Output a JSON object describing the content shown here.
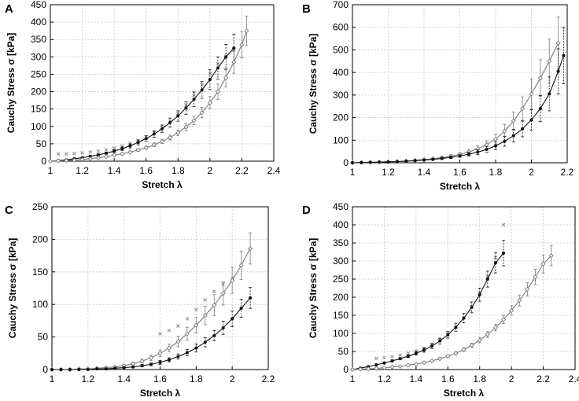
{
  "figure": {
    "panels": [
      "A",
      "B",
      "C",
      "D"
    ]
  },
  "chart_data": [
    {
      "panel": "A",
      "type": "line",
      "title": "",
      "xlabel": "Stretch λ",
      "ylabel": "Cauchy Stress σ [kPa]",
      "xlim": [
        1,
        2.4
      ],
      "ylim": [
        0,
        450
      ],
      "xticks": [
        "1",
        "1.2",
        "1.4",
        "1.6",
        "1.8",
        "2",
        "2.2",
        "2.4"
      ],
      "yticks": [
        "0",
        "50",
        "100",
        "150",
        "200",
        "250",
        "300",
        "350",
        "400",
        "450"
      ],
      "grid": true,
      "series": [
        {
          "name": "light grey series",
          "color": "#8a8a8a",
          "marker": "x",
          "line": false,
          "x": [
            1.05,
            1.1,
            1.15,
            1.2,
            1.25,
            1.3,
            1.35,
            1.4,
            1.45,
            1.5,
            1.55,
            1.6,
            1.65,
            1.7,
            1.75,
            1.8,
            1.85,
            1.9,
            1.95,
            2.0,
            2.05,
            2.1,
            2.15
          ],
          "y": [
            21,
            21,
            22,
            24,
            26,
            29,
            33,
            38,
            44,
            51,
            60,
            70,
            82,
            97,
            115,
            137,
            162,
            190,
            220,
            252,
            280,
            300,
            320
          ]
        },
        {
          "name": "black series",
          "color": "#111111",
          "marker": "dot",
          "line": true,
          "x": [
            1.0,
            1.05,
            1.1,
            1.15,
            1.2,
            1.25,
            1.3,
            1.35,
            1.4,
            1.45,
            1.5,
            1.55,
            1.6,
            1.65,
            1.7,
            1.75,
            1.8,
            1.85,
            1.9,
            1.95,
            2.0,
            2.05,
            2.1,
            2.15
          ],
          "y": [
            0,
            2,
            4,
            7,
            10,
            14,
            18,
            23,
            29,
            36,
            44,
            54,
            65,
            78,
            93,
            111,
            130,
            153,
            178,
            205,
            235,
            268,
            300,
            325
          ],
          "err": [
            0,
            0,
            1,
            1,
            2,
            2,
            3,
            3,
            4,
            5,
            6,
            7,
            8,
            9,
            11,
            13,
            15,
            18,
            21,
            24,
            28,
            32,
            36,
            40
          ]
        },
        {
          "name": "grey series",
          "color": "#7a7a7a",
          "marker": "diamond",
          "line": true,
          "x": [
            1.0,
            1.05,
            1.1,
            1.15,
            1.2,
            1.25,
            1.3,
            1.35,
            1.4,
            1.45,
            1.5,
            1.55,
            1.6,
            1.65,
            1.7,
            1.75,
            1.8,
            1.85,
            1.9,
            1.95,
            2.0,
            2.05,
            2.1,
            2.15,
            2.2,
            2.23
          ],
          "y": [
            0,
            1,
            2,
            3,
            5,
            7,
            10,
            13,
            17,
            21,
            26,
            32,
            39,
            47,
            57,
            68,
            82,
            98,
            117,
            140,
            168,
            200,
            240,
            285,
            335,
            375
          ],
          "err": [
            0,
            0,
            0,
            1,
            1,
            1,
            2,
            2,
            2,
            3,
            3,
            4,
            4,
            5,
            6,
            7,
            8,
            10,
            12,
            15,
            18,
            22,
            27,
            32,
            38,
            42
          ]
        }
      ]
    },
    {
      "panel": "B",
      "type": "line",
      "title": "",
      "xlabel": "Stretch λ",
      "ylabel": "Cauchy Stress σ [kPa]",
      "xlim": [
        1,
        2.2
      ],
      "ylim": [
        0,
        700
      ],
      "xticks": [
        "1",
        "1.2",
        "1.4",
        "1.6",
        "1.8",
        "2",
        "2.2"
      ],
      "yticks": [
        "0",
        "100",
        "200",
        "300",
        "400",
        "500",
        "600",
        "700"
      ],
      "grid": true,
      "series": [
        {
          "name": "grey series",
          "color": "#7a7a7a",
          "marker": "diamond",
          "line": true,
          "x": [
            1.0,
            1.05,
            1.1,
            1.15,
            1.2,
            1.25,
            1.3,
            1.35,
            1.4,
            1.45,
            1.5,
            1.55,
            1.6,
            1.65,
            1.7,
            1.75,
            1.8,
            1.85,
            1.9,
            1.95,
            2.0,
            2.05,
            2.1,
            2.15
          ],
          "y": [
            0,
            1,
            2,
            3,
            4,
            6,
            8,
            11,
            14,
            18,
            23,
            29,
            37,
            48,
            62,
            80,
            105,
            140,
            185,
            240,
            305,
            375,
            450,
            530
          ],
          "err": [
            0,
            0,
            0,
            1,
            1,
            1,
            2,
            2,
            3,
            4,
            5,
            6,
            8,
            10,
            13,
            17,
            22,
            30,
            40,
            52,
            66,
            82,
            98,
            115
          ]
        },
        {
          "name": "black series",
          "color": "#111111",
          "marker": "dot",
          "line": true,
          "x": [
            1.0,
            1.05,
            1.1,
            1.15,
            1.2,
            1.25,
            1.3,
            1.35,
            1.4,
            1.45,
            1.5,
            1.55,
            1.6,
            1.65,
            1.7,
            1.75,
            1.8,
            1.85,
            1.9,
            1.95,
            2.0,
            2.05,
            2.1,
            2.15,
            2.18
          ],
          "y": [
            0,
            1,
            2,
            3,
            4,
            5,
            7,
            9,
            12,
            15,
            19,
            24,
            30,
            38,
            47,
            59,
            75,
            95,
            120,
            150,
            190,
            240,
            305,
            405,
            475
          ],
          "err": [
            0,
            0,
            0,
            1,
            1,
            1,
            1,
            2,
            2,
            3,
            4,
            5,
            6,
            8,
            10,
            13,
            17,
            22,
            28,
            35,
            45,
            58,
            75,
            100,
            125
          ]
        }
      ]
    },
    {
      "panel": "C",
      "type": "line",
      "title": "",
      "xlabel": "Stretch λ",
      "ylabel": "Cauchy Stress σ [kPa]",
      "xlim": [
        1,
        2.2
      ],
      "ylim": [
        0,
        250
      ],
      "xticks": [
        "1",
        "1.2",
        "1.4",
        "1.6",
        "1.8",
        "2",
        "2.2"
      ],
      "yticks": [
        "0",
        "50",
        "100",
        "150",
        "200",
        "250"
      ],
      "grid": true,
      "series": [
        {
          "name": "light grey series",
          "color": "#8a8a8a",
          "marker": "x",
          "line": false,
          "x": [
            1.6,
            1.65,
            1.7,
            1.75,
            1.8,
            1.85,
            1.9,
            1.95,
            2.0
          ],
          "y": [
            55,
            60,
            67,
            78,
            92,
            107,
            120,
            131,
            140
          ]
        },
        {
          "name": "grey series",
          "color": "#7a7a7a",
          "marker": "diamond",
          "line": true,
          "x": [
            1.0,
            1.05,
            1.1,
            1.15,
            1.2,
            1.25,
            1.3,
            1.35,
            1.4,
            1.45,
            1.5,
            1.55,
            1.6,
            1.65,
            1.7,
            1.75,
            1.8,
            1.85,
            1.9,
            1.95,
            2.0,
            2.05,
            2.1
          ],
          "y": [
            0,
            0,
            0,
            1,
            1,
            2,
            3,
            4,
            6,
            9,
            13,
            18,
            25,
            33,
            43,
            55,
            68,
            83,
            99,
            117,
            137,
            160,
            186
          ],
          "err": [
            0,
            0,
            0,
            0,
            0,
            1,
            1,
            1,
            2,
            2,
            3,
            4,
            5,
            6,
            8,
            10,
            12,
            14,
            16,
            18,
            20,
            22,
            24
          ]
        },
        {
          "name": "black series",
          "color": "#111111",
          "marker": "dot",
          "line": true,
          "x": [
            1.0,
            1.05,
            1.1,
            1.15,
            1.2,
            1.25,
            1.3,
            1.35,
            1.4,
            1.45,
            1.5,
            1.55,
            1.6,
            1.65,
            1.7,
            1.75,
            1.8,
            1.85,
            1.9,
            1.95,
            2.0,
            2.05,
            2.1
          ],
          "y": [
            0,
            0,
            0,
            0,
            0,
            1,
            1,
            2,
            3,
            4,
            6,
            8,
            11,
            15,
            20,
            26,
            33,
            42,
            52,
            64,
            78,
            94,
            110
          ],
          "err": [
            0,
            0,
            0,
            0,
            0,
            0,
            1,
            1,
            1,
            1,
            2,
            2,
            3,
            3,
            4,
            5,
            6,
            7,
            8,
            10,
            12,
            14,
            16
          ]
        }
      ]
    },
    {
      "panel": "D",
      "type": "line",
      "title": "",
      "xlabel": "Stretch λ",
      "ylabel": "Cauchy Stress σ [kPa]",
      "xlim": [
        1,
        2.4
      ],
      "ylim": [
        0,
        450
      ],
      "xticks": [
        "1",
        "1.2",
        "1.4",
        "1.6",
        "1.8",
        "2",
        "2.2",
        "2.4"
      ],
      "yticks": [
        "0",
        "50",
        "100",
        "150",
        "200",
        "250",
        "300",
        "350",
        "400",
        "450"
      ],
      "grid": true,
      "series": [
        {
          "name": "light grey series",
          "color": "#8a8a8a",
          "marker": "x",
          "line": false,
          "x": [
            1.15,
            1.2,
            1.25,
            1.3,
            1.35,
            1.4,
            1.45,
            1.5,
            1.55,
            1.6,
            1.65,
            1.7,
            1.75,
            1.8,
            1.85,
            1.9,
            1.95
          ],
          "y": [
            31,
            33,
            36,
            40,
            45,
            51,
            59,
            69,
            82,
            98,
            118,
            143,
            174,
            212,
            258,
            310,
            400
          ]
        },
        {
          "name": "black series",
          "color": "#111111",
          "marker": "dot",
          "line": true,
          "x": [
            1.0,
            1.05,
            1.1,
            1.15,
            1.2,
            1.25,
            1.3,
            1.35,
            1.4,
            1.45,
            1.5,
            1.55,
            1.6,
            1.65,
            1.7,
            1.75,
            1.8,
            1.85,
            1.9,
            1.95
          ],
          "y": [
            0,
            4,
            8,
            13,
            18,
            24,
            30,
            37,
            45,
            54,
            65,
            79,
            96,
            117,
            142,
            172,
            207,
            250,
            295,
            322
          ],
          "err": [
            0,
            1,
            1,
            2,
            2,
            3,
            3,
            4,
            5,
            6,
            7,
            8,
            9,
            11,
            13,
            15,
            18,
            22,
            28,
            35
          ]
        },
        {
          "name": "grey series",
          "color": "#7a7a7a",
          "marker": "diamond",
          "line": true,
          "x": [
            1.0,
            1.05,
            1.1,
            1.15,
            1.2,
            1.25,
            1.3,
            1.35,
            1.4,
            1.45,
            1.5,
            1.55,
            1.6,
            1.65,
            1.7,
            1.75,
            1.8,
            1.85,
            1.9,
            1.95,
            2.0,
            2.05,
            2.1,
            2.15,
            2.2,
            2.25
          ],
          "y": [
            0,
            1,
            2,
            3,
            5,
            7,
            9,
            12,
            15,
            19,
            24,
            30,
            37,
            45,
            55,
            67,
            81,
            97,
            116,
            138,
            163,
            191,
            222,
            256,
            292,
            315
          ],
          "err": [
            0,
            0,
            0,
            0,
            1,
            1,
            1,
            1,
            2,
            2,
            2,
            3,
            3,
            4,
            5,
            6,
            7,
            8,
            9,
            11,
            13,
            15,
            18,
            21,
            25,
            28
          ]
        }
      ]
    }
  ]
}
